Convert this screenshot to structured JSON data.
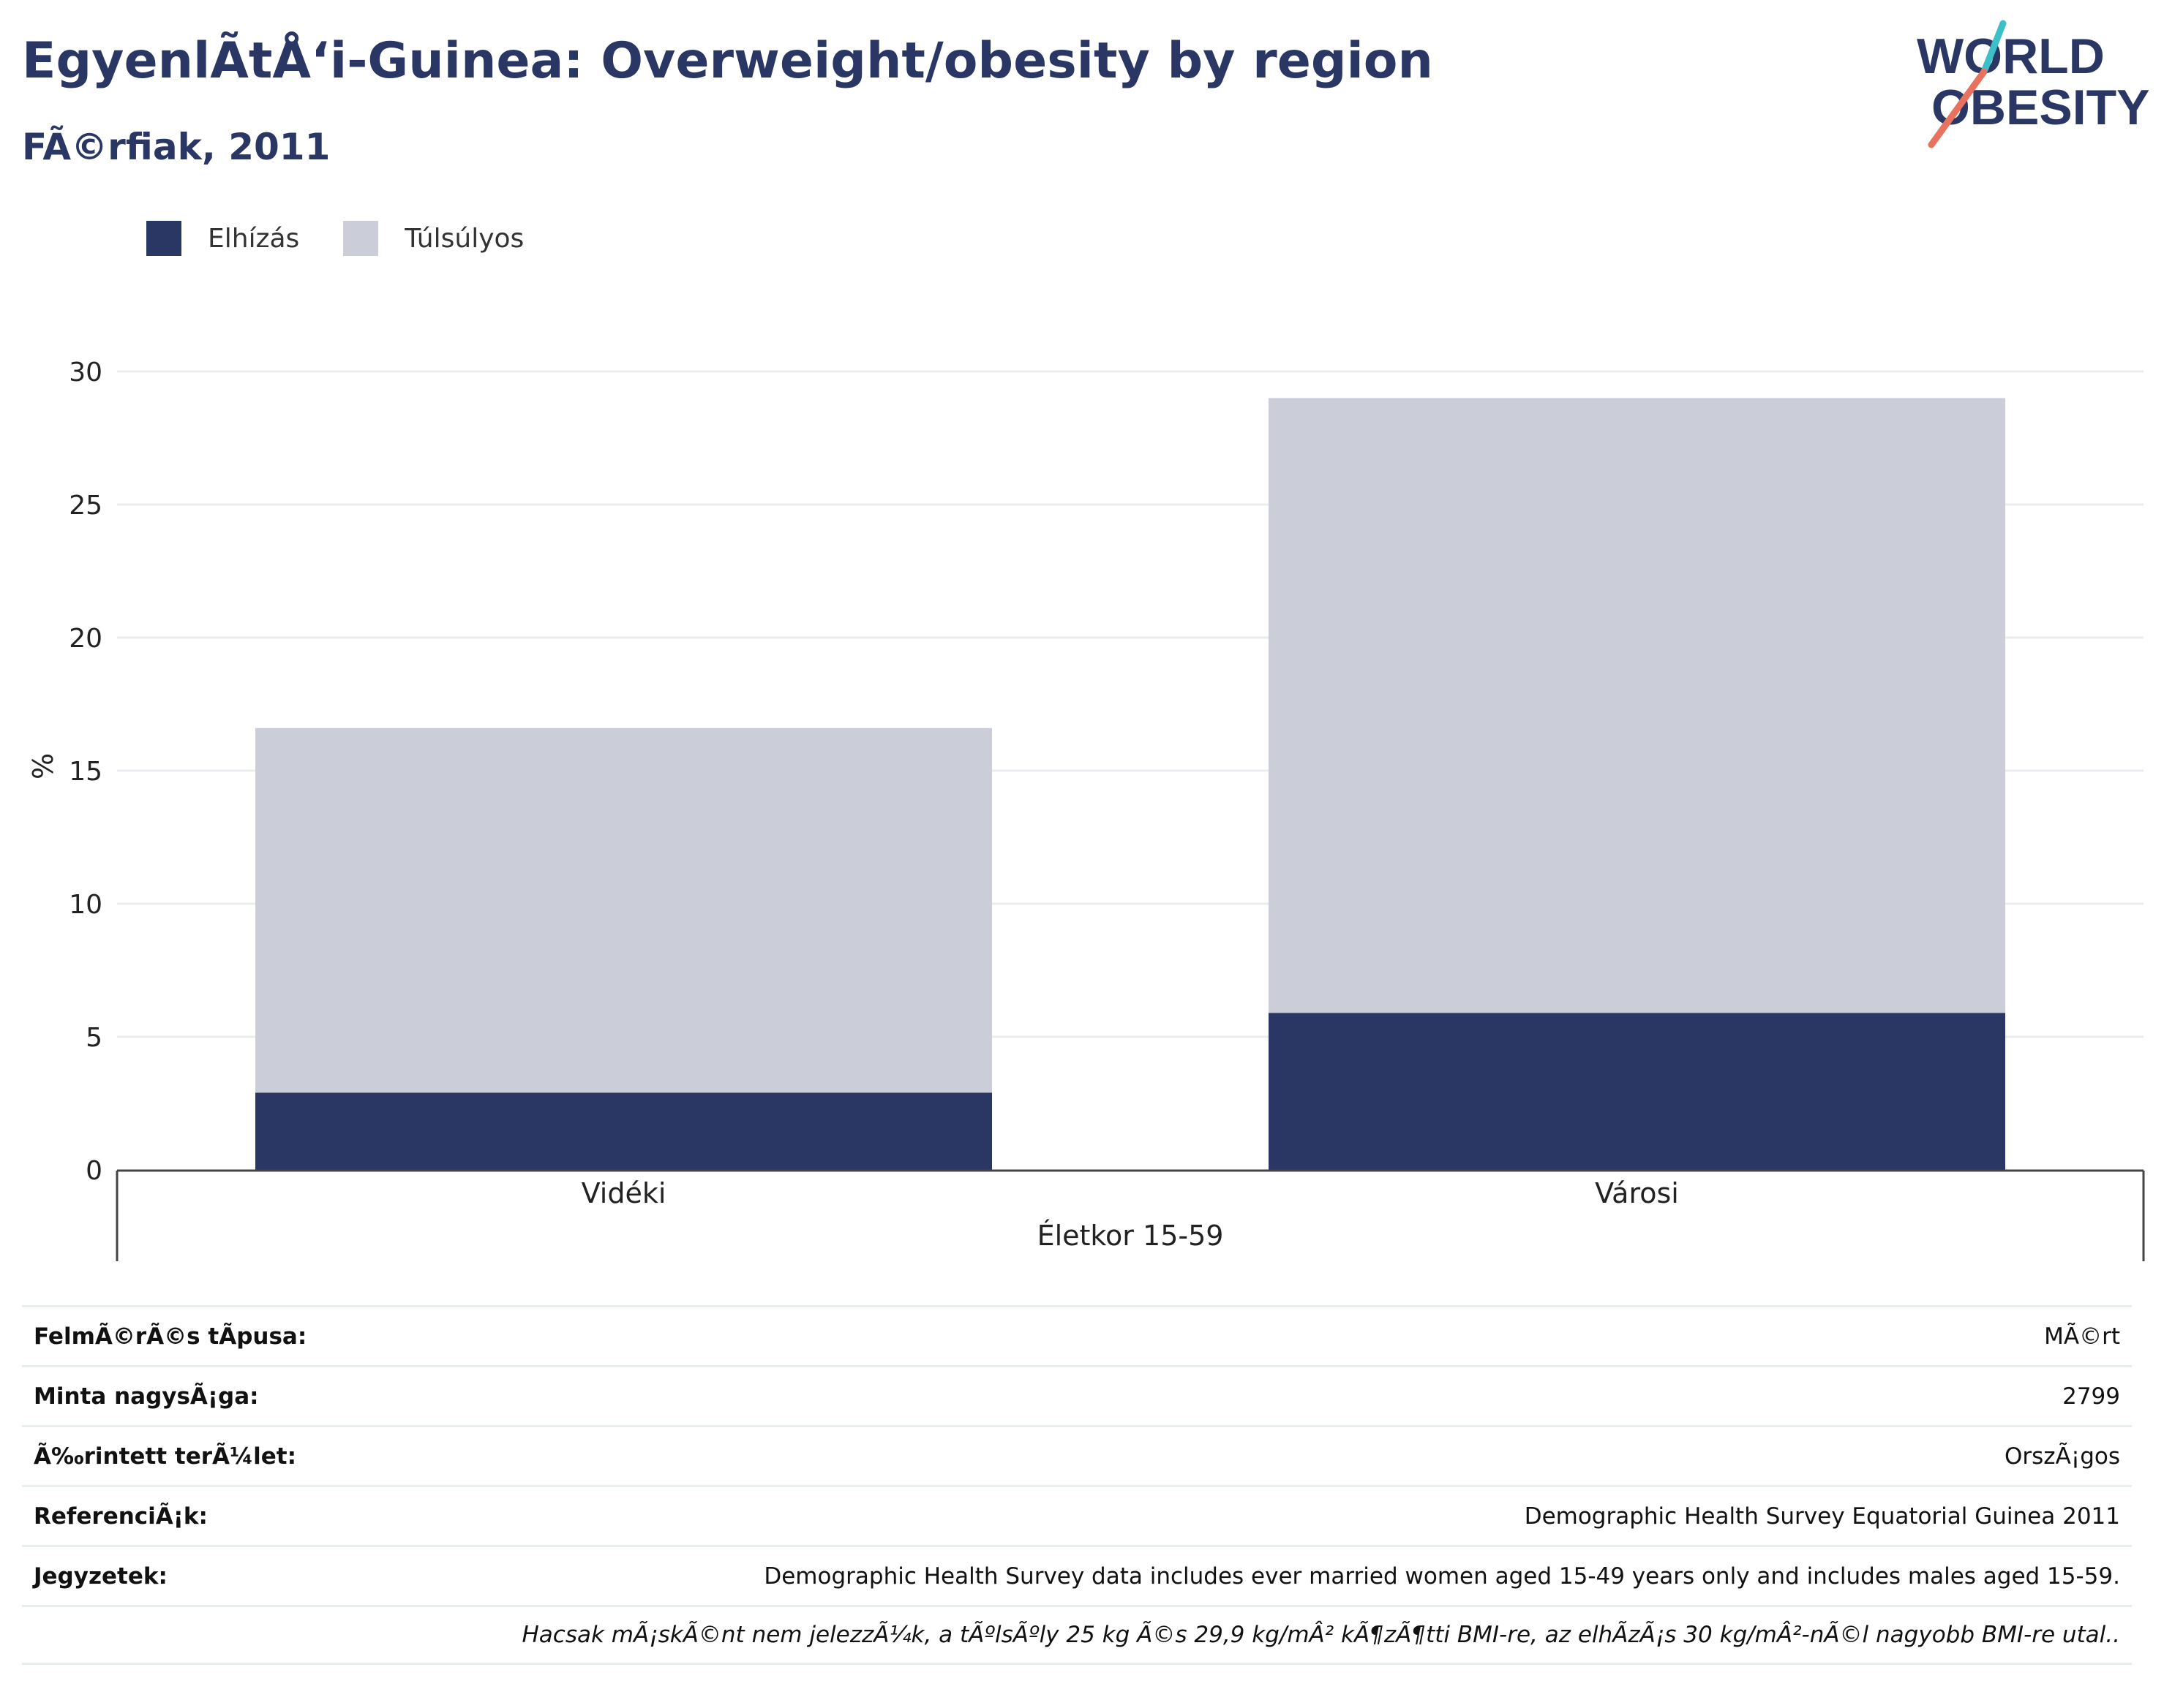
{
  "title": "EgyenlÃtÅ‘i-Guinea: Overweight/obesity by region",
  "subtitle": "FÃ©rfiak, 2011",
  "logo": {
    "line1": "WORLD",
    "line2": "OBESITY"
  },
  "colors": {
    "obesity": "#2a3764",
    "overweight": "#cbcdd8",
    "text": "#2a3764",
    "logo_teal": "#3bbfc9",
    "logo_coral": "#e8715f"
  },
  "legend": [
    {
      "label": "Elhízás",
      "color": "#2a3764"
    },
    {
      "label": "Túlsúlyos",
      "color": "#cbcdd8"
    }
  ],
  "chart_data": {
    "type": "bar",
    "stacked": true,
    "categories": [
      "Vidéki",
      "Városi"
    ],
    "series": [
      {
        "name": "Elhízás",
        "values": [
          2.9,
          5.9
        ],
        "color": "#2a3764"
      },
      {
        "name": "Túlsúlyos",
        "values": [
          13.7,
          23.1
        ],
        "color": "#cbcdd8"
      }
    ],
    "xlabel": "Életkor 15-59",
    "ylabel": "%",
    "ylim": [
      0,
      30
    ],
    "yticks": [
      0,
      5,
      10,
      15,
      20,
      25,
      30
    ],
    "grid": true,
    "legend_position": "top-left"
  },
  "info": [
    {
      "label": "FelmÃ©rÃ©s tÃpusa:",
      "value": "MÃ©rt"
    },
    {
      "label": "Minta nagysÃ¡ga:",
      "value": "2799"
    },
    {
      "label": "Ã‰rintett terÃ¼let:",
      "value": "OrszÃ¡gos"
    },
    {
      "label": "ReferenciÃ¡k:",
      "value": "Demographic Health Survey Equatorial Guinea 2011"
    },
    {
      "label": "Jegyzetek:",
      "value": "Demographic Health Survey data includes ever married women aged 15-49 years only and includes males aged 15-59."
    },
    {
      "label": "",
      "value": "Hacsak mÃ¡skÃ©nt nem jelezzÃ¼k, a tÃºlsÃºly 25 kg Ã©s 29,9 kg/mÂ² kÃ¶zÃ¶tti BMI-re, az elhÃ­zÃ¡s 30 kg/mÂ²-nÃ©l nagyobb BMI-re utal.."
    }
  ]
}
